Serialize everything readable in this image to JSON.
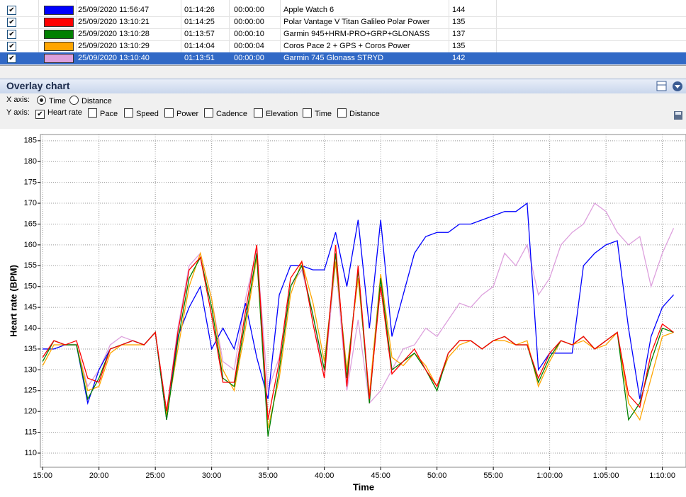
{
  "table": {
    "rows": [
      {
        "checked": true,
        "date": "25/09/2020 11:56:47",
        "duration": "01:14:26",
        "offset": "00:00:00",
        "value": "144"
      },
      {
        "checked": true,
        "date": "25/09/2020 13:10:21",
        "duration": "01:14:25",
        "offset": "00:00:00",
        "value": "135"
      },
      {
        "checked": true,
        "date": "25/09/2020 13:10:28",
        "duration": "01:13:57",
        "offset": "00:00:10",
        "value": "137"
      },
      {
        "checked": true,
        "date": "25/09/2020 13:10:29",
        "duration": "01:14:04",
        "offset": "00:00:04",
        "value": "135"
      },
      {
        "checked": true,
        "date": "25/09/2020 13:10:40",
        "duration": "01:13:51",
        "offset": "00:00:00",
        "value": "142"
      }
    ]
  },
  "panel": {
    "title": "Overlay chart",
    "x_axis_label": "X axis:",
    "x_options": [
      {
        "label": "Time",
        "selected": true
      },
      {
        "label": "Distance",
        "selected": false
      }
    ],
    "y_axis_label": "Y axis:",
    "y_options": [
      {
        "label": "Heart rate",
        "checked": true
      },
      {
        "label": "Pace",
        "checked": false
      },
      {
        "label": "Speed",
        "checked": false
      },
      {
        "label": "Power",
        "checked": false
      },
      {
        "label": "Cadence",
        "checked": false
      },
      {
        "label": "Elevation",
        "checked": false
      },
      {
        "label": "Time",
        "checked": false
      },
      {
        "label": "Distance",
        "checked": false
      }
    ]
  },
  "chart_data": {
    "type": "line",
    "x_label": "Time",
    "y_label": "Heart rate (BPM)",
    "grid": true,
    "xlim": [
      14.8,
      72.1
    ],
    "ylim": [
      106.6,
      186.5
    ],
    "xticks": [
      {
        "value": 15,
        "label": "15:00"
      },
      {
        "value": 20,
        "label": "20:00"
      },
      {
        "value": 25,
        "label": "25:00"
      },
      {
        "value": 30,
        "label": "30:00"
      },
      {
        "value": 35,
        "label": "35:00"
      },
      {
        "value": 40,
        "label": "40:00"
      },
      {
        "value": 45,
        "label": "45:00"
      },
      {
        "value": 50,
        "label": "50:00"
      },
      {
        "value": 55,
        "label": "55:00"
      },
      {
        "value": 60,
        "label": "1:00:00"
      },
      {
        "value": 65,
        "label": "1:05:00"
      },
      {
        "value": 70,
        "label": "1:10:00"
      }
    ],
    "yticks": [
      110,
      115,
      120,
      125,
      130,
      135,
      140,
      145,
      150,
      155,
      160,
      165,
      170,
      175,
      180,
      185
    ],
    "x": [
      15,
      16,
      17,
      18,
      19,
      20,
      21,
      22,
      23,
      24,
      25,
      26,
      27,
      28,
      29,
      30,
      31,
      32,
      33,
      34,
      35,
      36,
      37,
      38,
      39,
      40,
      41,
      42,
      43,
      44,
      45,
      46,
      47,
      48,
      49,
      50,
      51,
      52,
      53,
      54,
      55,
      56,
      57,
      58,
      59,
      60,
      61,
      62,
      63,
      64,
      65,
      66,
      67,
      68,
      69,
      70,
      71
    ],
    "series": [
      {
        "name": "Apple Watch 6",
        "color": "#0000ff",
        "values": [
          135,
          135,
          136,
          136,
          122,
          130,
          135,
          136,
          137,
          136,
          139,
          118,
          138,
          145,
          150,
          135,
          140,
          135,
          146,
          133,
          123,
          148,
          155,
          155,
          154,
          154,
          163,
          150,
          166,
          140,
          166,
          138,
          148,
          158,
          162,
          163,
          163,
          165,
          165,
          166,
          167,
          168,
          168,
          170,
          130,
          134,
          134,
          134,
          155,
          158,
          160,
          161,
          140,
          123,
          138,
          145,
          148
        ]
      },
      {
        "name": "Polar Vantage V Titan Galileo Polar Power",
        "color": "#ff0000",
        "values": [
          133,
          137,
          136,
          137,
          128,
          127,
          135,
          136,
          137,
          136,
          139,
          120,
          139,
          154,
          157,
          143,
          127,
          127,
          144,
          160,
          118,
          132,
          152,
          156,
          141,
          128,
          160,
          126,
          155,
          123,
          150,
          129,
          132,
          135,
          130,
          126,
          134,
          137,
          137,
          135,
          137,
          138,
          136,
          136,
          128,
          134,
          137,
          136,
          138,
          135,
          137,
          139,
          124,
          121,
          134,
          141,
          139
        ]
      },
      {
        "name": "Garmin 945+HRM-PRO+GRP+GLONASS",
        "color": "#008000",
        "values": [
          132,
          137,
          136,
          136,
          123,
          128,
          135,
          136,
          137,
          136,
          139,
          118,
          137,
          152,
          157,
          145,
          128,
          126,
          142,
          158,
          114,
          130,
          150,
          155,
          143,
          130,
          158,
          128,
          154,
          122,
          152,
          130,
          132,
          134,
          130,
          125,
          134,
          137,
          137,
          135,
          137,
          138,
          136,
          136,
          127,
          133,
          137,
          136,
          138,
          135,
          137,
          139,
          118,
          122,
          132,
          140,
          139
        ]
      },
      {
        "name": "Coros Pace 2 + GPS + Coros Power",
        "color": "#ffa500",
        "values": [
          131,
          136,
          136,
          136,
          125,
          126,
          134,
          136,
          136,
          136,
          139,
          119,
          135,
          150,
          158,
          147,
          130,
          125,
          140,
          157,
          116,
          128,
          148,
          156,
          146,
          132,
          156,
          130,
          152,
          124,
          153,
          133,
          131,
          134,
          131,
          126,
          133,
          136,
          137,
          135,
          137,
          137,
          136,
          137,
          126,
          132,
          137,
          136,
          137,
          135,
          136,
          139,
          122,
          118,
          128,
          138,
          139
        ]
      },
      {
        "name": "Garmin 745 Glonass STRYD",
        "color": "#dda0dd",
        "values": [
          133,
          137,
          136,
          136,
          126,
          130,
          136,
          138,
          137,
          136,
          139,
          120,
          140,
          155,
          158,
          147,
          132,
          130,
          147,
          159,
          125,
          133,
          150,
          154,
          143,
          128,
          156,
          125,
          142,
          122,
          125,
          130,
          135,
          136,
          140,
          138,
          142,
          146,
          145,
          148,
          150,
          158,
          155,
          160,
          148,
          152,
          160,
          163,
          165,
          170,
          168,
          163,
          160,
          162,
          150,
          158,
          164
        ]
      }
    ]
  }
}
